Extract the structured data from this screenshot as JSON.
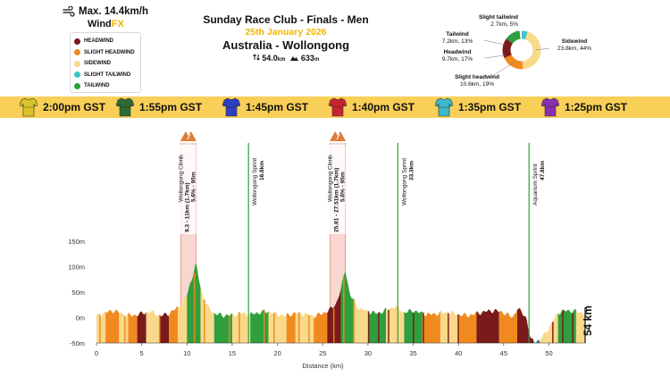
{
  "header": {
    "wind_max": "Max. 14.4km/h",
    "brand_prefix": "Wind",
    "brand_suffix": "FX"
  },
  "legend": {
    "items": [
      {
        "label": "HEADWIND",
        "color": "#7a1a1a"
      },
      {
        "label": "SLIGHT HEADWIND",
        "color": "#f08a1f"
      },
      {
        "label": "SIDEWIND",
        "color": "#f9d98a"
      },
      {
        "label": "SLIGHT TAILWIND",
        "color": "#3ec6c9"
      },
      {
        "label": "TAILWIND",
        "color": "#2f9e3c"
      }
    ]
  },
  "title": {
    "race": "Sunday Race Club - Finals - Men",
    "date": "25th January 2026",
    "location": "Australia - Wollongong",
    "distance": "54.0",
    "distance_unit": "km",
    "elevation": "633",
    "elevation_unit": "m"
  },
  "wind_breakdown": {
    "segments": [
      {
        "name": "Slight tailwind",
        "value": "2.7km, 5%",
        "percent": 5,
        "color": "#3ec6c9"
      },
      {
        "name": "Tailwind",
        "value": "7.2km, 13%",
        "percent": 13,
        "color": "#2f9e3c"
      },
      {
        "name": "Headwind",
        "value": "9.7km, 17%",
        "percent": 17,
        "color": "#7a1a1a"
      },
      {
        "name": "Slight headwind",
        "value": "10.6km, 19%",
        "percent": 19,
        "color": "#f08a1f"
      },
      {
        "name": "Sidewind",
        "value": "23.8km, 44%",
        "percent": 44,
        "color": "#f9d98a"
      }
    ]
  },
  "timebar": {
    "items": [
      {
        "time": "2:00pm GST",
        "jersey_color": "#d9c52a",
        "icon": "jersey-icon"
      },
      {
        "time": "1:55pm GST",
        "jersey_color": "#2e6b34",
        "icon": "jersey-icon"
      },
      {
        "time": "1:45pm GST",
        "jersey_color": "#2f3fbf",
        "icon": "jersey-icon"
      },
      {
        "time": "1:40pm GST",
        "jersey_color": "#c8242f",
        "icon": "jersey-icon"
      },
      {
        "time": "1:35pm GST",
        "jersey_color": "#3fb8c9",
        "icon": "jersey-icon"
      },
      {
        "time": "1:25pm GST",
        "jersey_color": "#8a2fb0",
        "icon": "jersey-icon"
      }
    ]
  },
  "chart_data": {
    "type": "area",
    "xlabel": "Distance (km)",
    "ylabel": "",
    "xlim": [
      0,
      54
    ],
    "ylim": [
      -50,
      150
    ],
    "x_ticks": [
      0,
      5,
      10,
      15,
      20,
      25,
      30,
      35,
      40,
      45,
      50
    ],
    "y_ticks": [
      -50,
      0,
      50,
      100,
      150
    ],
    "y_tick_labels": [
      "-50m",
      "0m",
      "50m",
      "100m",
      "150m"
    ],
    "total_label": "54 km",
    "elevation_profile": {
      "x": [
        0,
        1,
        2,
        3,
        4,
        5,
        6,
        7,
        8,
        9,
        9.5,
        10,
        10.5,
        11,
        11.5,
        12,
        13,
        14,
        15,
        16,
        17,
        18,
        19,
        20,
        21,
        22,
        23,
        24,
        25,
        26,
        26.5,
        27,
        27.5,
        28,
        29,
        30,
        31,
        32,
        33,
        34,
        35,
        36,
        37,
        38,
        39,
        40,
        41,
        42,
        43,
        44,
        45,
        45.5,
        46,
        46.5,
        47,
        47.5,
        48,
        48.5,
        49,
        50,
        51,
        52,
        53,
        54
      ],
      "y": [
        3,
        10,
        14,
        6,
        4,
        8,
        12,
        3,
        8,
        20,
        30,
        45,
        75,
        105,
        60,
        28,
        8,
        4,
        5,
        9,
        6,
        10,
        12,
        6,
        4,
        9,
        7,
        3,
        8,
        18,
        28,
        55,
        95,
        45,
        18,
        12,
        8,
        15,
        22,
        10,
        14,
        8,
        6,
        9,
        10,
        6,
        4,
        8,
        12,
        14,
        10,
        5,
        0,
        18,
        10,
        0,
        -45,
        -45,
        -45,
        -20,
        10,
        14,
        12,
        8
      ]
    },
    "climbs": [
      {
        "name": "Wollongong Climb",
        "range": "9.3 - 11km (1.7km)",
        "stats": "5.6% - 95m",
        "x_start": 9.3,
        "x_end": 11
      },
      {
        "name": "Wollongong Climb",
        "range": "25.81 - 27.51km (1.7km)",
        "stats": "5.6% - 95m",
        "x_start": 25.81,
        "x_end": 27.51
      }
    ],
    "sprints": [
      {
        "name": "Wollongong Sprint",
        "km": "16.8km",
        "x": 16.8
      },
      {
        "name": "Wollongong Sprint",
        "km": "33.3km",
        "x": 33.3
      },
      {
        "name": "Aquarium Sprint",
        "km": "47.8km",
        "x": 47.8
      }
    ],
    "wind_segments": [
      {
        "x0": 0,
        "x1": 1,
        "kind": "sidewind"
      },
      {
        "x0": 1,
        "x1": 2.5,
        "kind": "slight-headwind"
      },
      {
        "x0": 2.5,
        "x1": 3.5,
        "kind": "sidewind"
      },
      {
        "x0": 3.5,
        "x1": 4.5,
        "kind": "slight-headwind"
      },
      {
        "x0": 4.5,
        "x1": 5.5,
        "kind": "headwind"
      },
      {
        "x0": 5.5,
        "x1": 7,
        "kind": "sidewind"
      },
      {
        "x0": 7,
        "x1": 8,
        "kind": "headwind"
      },
      {
        "x0": 8,
        "x1": 9,
        "kind": "slight-headwind"
      },
      {
        "x0": 9,
        "x1": 10,
        "kind": "sidewind"
      },
      {
        "x0": 10,
        "x1": 11.5,
        "kind": "tailwind"
      },
      {
        "x0": 11.5,
        "x1": 13,
        "kind": "sidewind"
      },
      {
        "x0": 13,
        "x1": 15,
        "kind": "tailwind"
      },
      {
        "x0": 15,
        "x1": 17,
        "kind": "sidewind"
      },
      {
        "x0": 17,
        "x1": 19,
        "kind": "tailwind"
      },
      {
        "x0": 19,
        "x1": 21,
        "kind": "sidewind"
      },
      {
        "x0": 21,
        "x1": 22,
        "kind": "slight-headwind"
      },
      {
        "x0": 22,
        "x1": 24,
        "kind": "sidewind"
      },
      {
        "x0": 24,
        "x1": 25.5,
        "kind": "slight-headwind"
      },
      {
        "x0": 25.5,
        "x1": 27,
        "kind": "headwind"
      },
      {
        "x0": 27,
        "x1": 28.5,
        "kind": "tailwind"
      },
      {
        "x0": 28.5,
        "x1": 30,
        "kind": "sidewind"
      },
      {
        "x0": 30,
        "x1": 32,
        "kind": "tailwind"
      },
      {
        "x0": 32,
        "x1": 34,
        "kind": "sidewind"
      },
      {
        "x0": 34,
        "x1": 36,
        "kind": "tailwind"
      },
      {
        "x0": 36,
        "x1": 38,
        "kind": "slight-headwind"
      },
      {
        "x0": 38,
        "x1": 40,
        "kind": "sidewind"
      },
      {
        "x0": 40,
        "x1": 42,
        "kind": "slight-headwind"
      },
      {
        "x0": 42,
        "x1": 44.5,
        "kind": "headwind"
      },
      {
        "x0": 44.5,
        "x1": 46.5,
        "kind": "slight-headwind"
      },
      {
        "x0": 46.5,
        "x1": 48.3,
        "kind": "headwind"
      },
      {
        "x0": 48.3,
        "x1": 49,
        "kind": "slight-tailwind"
      },
      {
        "x0": 49,
        "x1": 51,
        "kind": "sidewind"
      },
      {
        "x0": 51,
        "x1": 53,
        "kind": "tailwind"
      },
      {
        "x0": 53,
        "x1": 54,
        "kind": "sidewind"
      }
    ]
  }
}
